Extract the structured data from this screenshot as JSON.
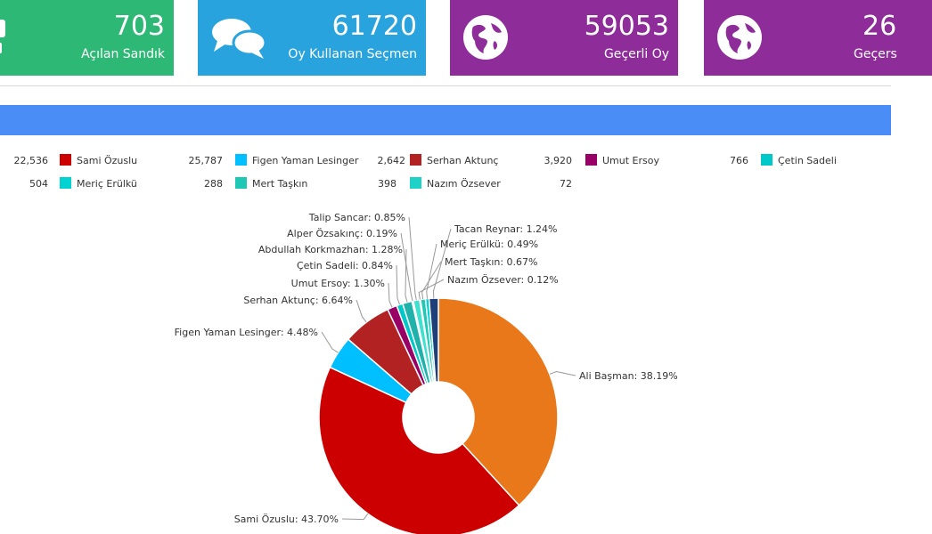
{
  "cards": [
    {
      "value": "703",
      "label": "Açılan Sandık",
      "color": "#2eb876",
      "icon": "ballot-box-icon"
    },
    {
      "value": "61720",
      "label": "Oy Kullanan Seçmen",
      "color": "#29a3dd",
      "icon": "chat-bubbles-icon"
    },
    {
      "value": "59053",
      "label": "Geçerli Oy",
      "color": "#8e2d9a",
      "icon": "globe-icon"
    },
    {
      "value": "26",
      "label": "Geçers",
      "color": "#8e2d9a",
      "icon": "globe-icon"
    }
  ],
  "legend_rows": [
    [
      {
        "pre": "22,536",
        "name": "Sami Özuslu",
        "color": "#cc0000"
      },
      {
        "pre": "25,787",
        "name": "Figen Yaman Lesinger",
        "color": "#00bfff"
      },
      {
        "pre": "2,642",
        "name": "Serhan Aktunç",
        "color": "#b22222"
      },
      {
        "pre": "3,920",
        "name": "Umut Ersoy",
        "color": "#990066"
      },
      {
        "pre": "766",
        "name": "Çetin Sadeli",
        "color": "#00c8c8"
      }
    ],
    [
      {
        "pre": "504",
        "name": "Meriç Erülkü",
        "color": "#00d2d2"
      },
      {
        "pre": "288",
        "name": "Mert Taşkın",
        "color": "#1ec8b4"
      },
      {
        "pre": "398",
        "name": "Nazım Özsever",
        "color": "#1ed2c8"
      },
      {
        "pre": "72",
        "name": "",
        "color": ""
      }
    ]
  ],
  "chart_data": {
    "type": "pie",
    "donut": true,
    "slices": [
      {
        "name": "Ali Başman",
        "value": 38.19,
        "label": "Ali Başman: 38.19%",
        "color": "#e8781a"
      },
      {
        "name": "Sami Özuslu",
        "value": 43.7,
        "label": "Sami Özuslu: 43.70%",
        "color": "#cc0000"
      },
      {
        "name": "Figen Yaman Lesinger",
        "value": 4.48,
        "label": "Figen Yaman Lesinger: 4.48%",
        "color": "#00bfff"
      },
      {
        "name": "Serhan Aktunç",
        "value": 6.64,
        "label": "Serhan Aktunç: 6.64%",
        "color": "#b22222"
      },
      {
        "name": "Umut Ersoy",
        "value": 1.3,
        "label": "Umut Ersoy: 1.30%",
        "color": "#990066"
      },
      {
        "name": "Çetin Sadeli",
        "value": 0.84,
        "label": "Çetin Sadeli: 0.84%",
        "color": "#00c8c8"
      },
      {
        "name": "Abdullah Korkmazhan",
        "value": 1.28,
        "label": "Abdullah Korkmazhan: 1.28%",
        "color": "#20b2aa"
      },
      {
        "name": "Alper Özsakınç",
        "value": 0.19,
        "label": "Alper Özsakınç: 0.19%",
        "color": "#48d1cc"
      },
      {
        "name": "Talip Sancar",
        "value": 0.85,
        "label": "Talip Sancar: 0.85%",
        "color": "#40e0d0"
      },
      {
        "name": "Nazım Özsever",
        "value": 0.12,
        "label": "Nazım Özsever: 0.12%",
        "color": "#1ed2c8"
      },
      {
        "name": "Mert Taşkın",
        "value": 0.67,
        "label": "Mert Taşkın: 0.67%",
        "color": "#1ec8b4"
      },
      {
        "name": "Meriç Erülkü",
        "value": 0.49,
        "label": "Meriç Erülkü: 0.49%",
        "color": "#00d2d2"
      },
      {
        "name": "Tacan Reynar",
        "value": 1.24,
        "label": "Tacan Reynar: 1.24%",
        "color": "#1f3f7a"
      }
    ]
  }
}
